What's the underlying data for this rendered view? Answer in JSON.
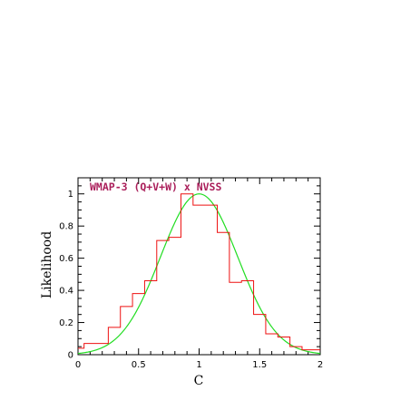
{
  "chart_data": {
    "type": "line",
    "title": "",
    "annotation": "WMAP-3 (Q+V+W) x NVSS",
    "xlabel": "C",
    "ylabel": "Likelihood",
    "xlim": [
      0,
      2
    ],
    "ylim": [
      0,
      1.1
    ],
    "x_ticks": [
      0,
      0.5,
      1,
      1.5,
      2
    ],
    "x_tick_labels": [
      "0",
      "0.5",
      "1",
      "1.5",
      "2"
    ],
    "y_ticks": [
      0,
      0.2,
      0.4,
      0.6,
      0.8,
      1
    ],
    "y_tick_labels": [
      "0",
      "0.2",
      "0.4",
      "0.6",
      "0.8",
      "1"
    ],
    "grid": false,
    "colors": {
      "histogram": "#ee1111",
      "gaussian": "#22dd22",
      "annotation": "#aa1e5a"
    },
    "series": [
      {
        "kind": "histogram",
        "bin_edges": [
          0,
          0.05,
          0.15,
          0.25,
          0.35,
          0.45,
          0.55,
          0.65,
          0.75,
          0.85,
          0.95,
          1.15,
          1.25,
          1.35,
          1.45,
          1.55,
          1.65,
          1.75,
          1.85,
          1.95,
          2.0
        ],
        "values": [
          0.04,
          0.07,
          0.07,
          0.17,
          0.3,
          0.38,
          0.46,
          0.71,
          0.73,
          1.0,
          0.93,
          0.76,
          0.45,
          0.46,
          0.25,
          0.13,
          0.11,
          0.05,
          0.03,
          0.03
        ]
      },
      {
        "kind": "gaussian",
        "mean": 1.0,
        "sigma": 0.32,
        "amplitude": 1.0
      }
    ]
  }
}
